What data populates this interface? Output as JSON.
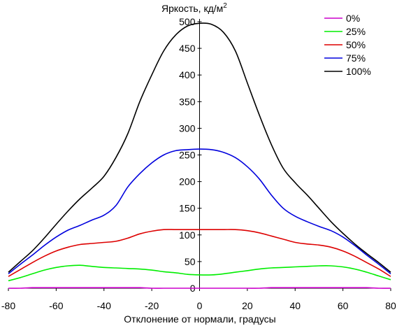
{
  "chart_data": {
    "type": "line",
    "ylabel": "Яркость, кд/м",
    "ylabel_sup": "2",
    "xlabel": "Отклонение от нормали, градусы",
    "xlim": [
      -80,
      80
    ],
    "ylim": [
      0,
      500
    ],
    "x_ticks": [
      -80,
      -60,
      -40,
      -20,
      0,
      20,
      40,
      60,
      80
    ],
    "y_ticks": [
      0,
      50,
      100,
      150,
      200,
      250,
      300,
      350,
      400,
      450,
      500
    ],
    "grid": false,
    "legend_position": "top-right",
    "x": [
      -80,
      -75,
      -70,
      -65,
      -60,
      -55,
      -50,
      -45,
      -40,
      -35,
      -30,
      -25,
      -20,
      -15,
      -10,
      -5,
      0,
      5,
      10,
      15,
      20,
      25,
      30,
      35,
      40,
      45,
      50,
      55,
      60,
      65,
      70,
      75,
      80
    ],
    "series": [
      {
        "name": "0%",
        "color": "#cc00cc",
        "values": [
          0,
          0,
          1,
          1,
          1,
          1,
          1,
          1,
          1,
          1,
          1,
          1,
          0,
          0,
          0,
          0,
          0,
          0,
          0,
          0,
          0,
          0,
          1,
          1,
          1,
          1,
          1,
          1,
          1,
          1,
          1,
          0,
          0
        ]
      },
      {
        "name": "25%",
        "color": "#00ee00",
        "values": [
          14,
          20,
          27,
          34,
          39,
          42,
          43,
          41,
          39,
          38,
          37,
          36,
          34,
          31,
          29,
          26,
          25,
          25,
          27,
          30,
          33,
          36,
          38,
          39,
          40,
          41,
          42,
          42,
          40,
          36,
          30,
          23,
          16
        ]
      },
      {
        "name": "50%",
        "color": "#dd0000",
        "values": [
          22,
          35,
          48,
          60,
          70,
          77,
          82,
          84,
          86,
          88,
          94,
          102,
          107,
          110,
          110,
          110,
          110,
          110,
          110,
          110,
          108,
          104,
          98,
          92,
          86,
          83,
          81,
          77,
          70,
          60,
          48,
          36,
          22
        ]
      },
      {
        "name": "75%",
        "color": "#0000dd",
        "values": [
          27,
          45,
          62,
          80,
          96,
          109,
          118,
          128,
          137,
          155,
          190,
          215,
          235,
          250,
          258,
          260,
          261,
          260,
          255,
          245,
          228,
          205,
          175,
          150,
          135,
          125,
          116,
          108,
          96,
          80,
          62,
          45,
          27
        ]
      },
      {
        "name": "100%",
        "color": "#000000",
        "values": [
          30,
          50,
          70,
          94,
          120,
          145,
          168,
          188,
          210,
          245,
          290,
          350,
          400,
          445,
          475,
          492,
          497,
          495,
          480,
          445,
          385,
          325,
          270,
          225,
          198,
          175,
          150,
          125,
          103,
          83,
          65,
          48,
          30
        ]
      }
    ]
  }
}
